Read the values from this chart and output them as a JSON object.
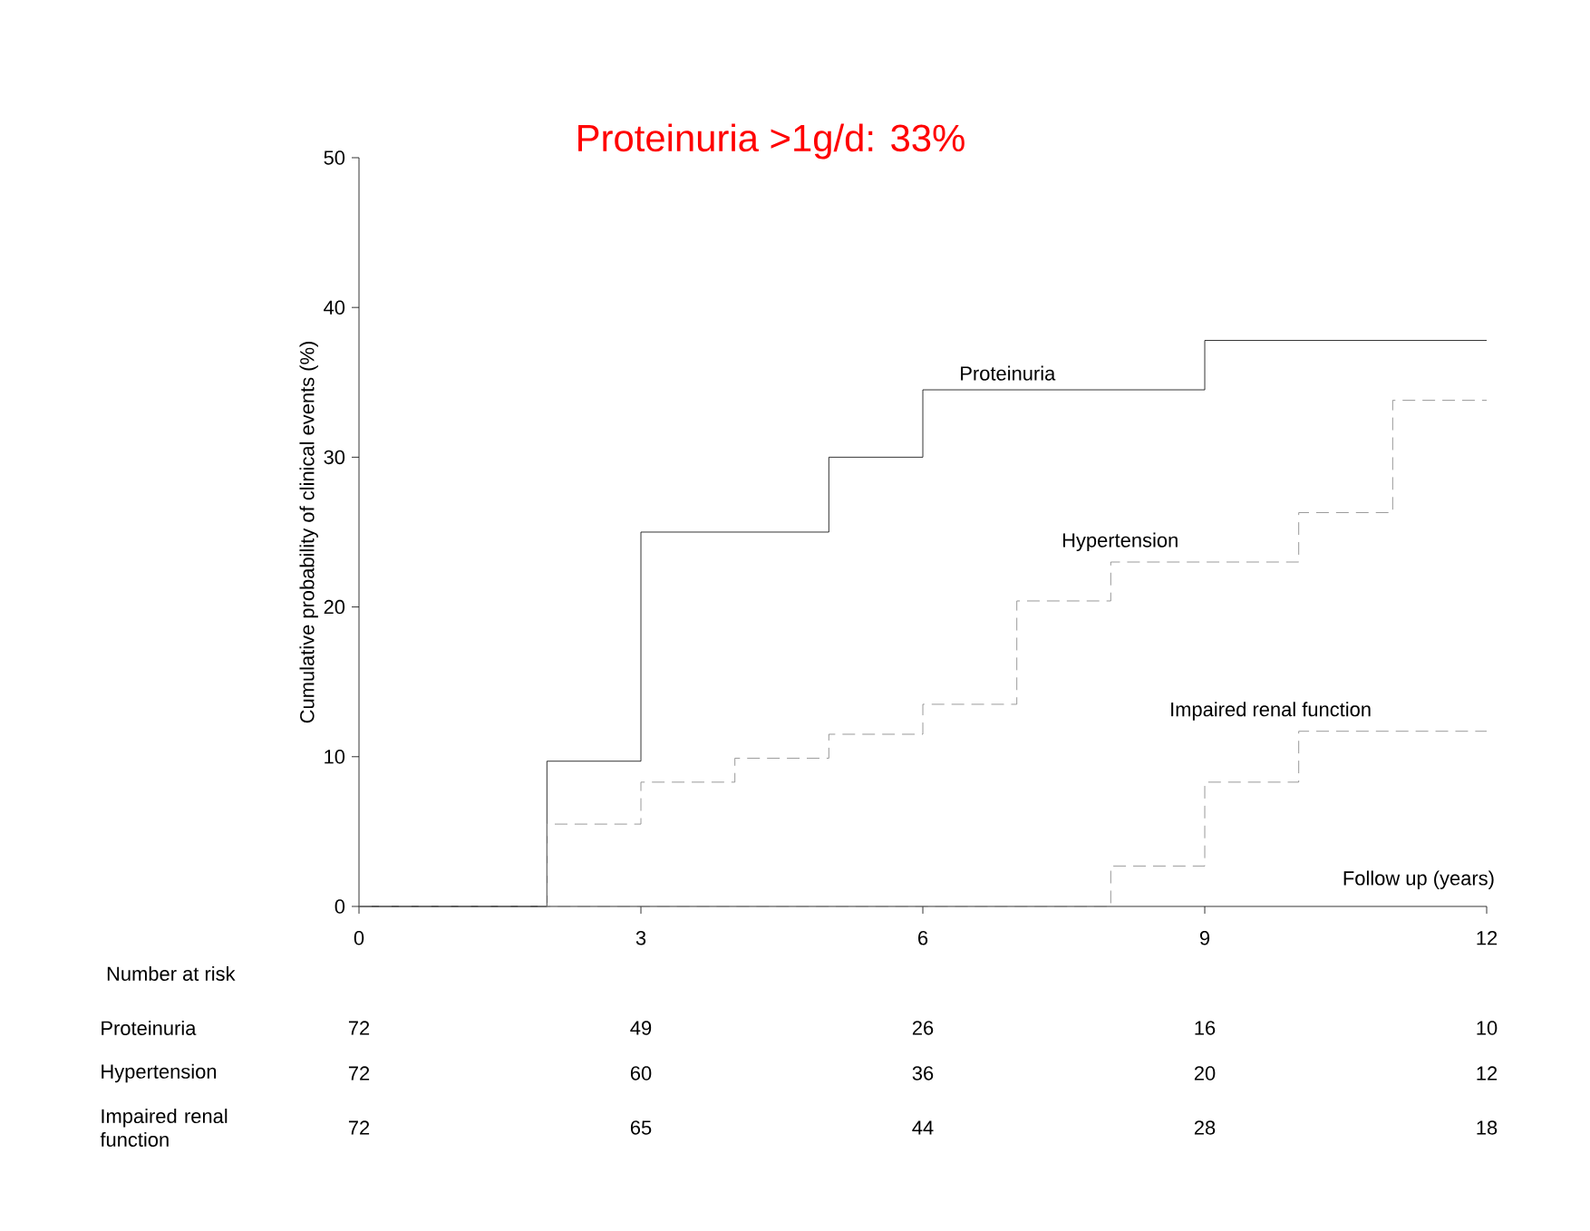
{
  "chart_data": {
    "type": "step",
    "title": "Proteinuria >1g/d: 33%",
    "xlabel": "Follow up (years)",
    "ylabel": "Cumulative probability of clinical events (%)",
    "xlim": [
      0,
      12
    ],
    "ylim": [
      0,
      50
    ],
    "xticks": [
      0,
      3,
      6,
      9,
      12
    ],
    "yticks": [
      0,
      10,
      20,
      30,
      40,
      50
    ],
    "grid": false,
    "marker": "none",
    "series": [
      {
        "name": "Proteinuria",
        "color": "#000000",
        "line_style": "solid",
        "x": [
          0,
          2,
          3,
          5,
          6,
          9,
          12
        ],
        "values": [
          0,
          9.7,
          25,
          30,
          34.5,
          37.8,
          37.8
        ]
      },
      {
        "name": "Hypertension",
        "color": "#808080",
        "line_style": "dashed",
        "x": [
          0,
          2,
          3,
          4,
          5,
          6,
          7,
          8,
          10,
          11,
          12
        ],
        "values": [
          0,
          5.5,
          8.3,
          9.9,
          11.5,
          13.5,
          20.4,
          23,
          26.3,
          33.8,
          33.8
        ]
      },
      {
        "name": "Impaired renal function",
        "color": "#808080",
        "line_style": "dashed",
        "x": [
          0,
          8,
          9,
          10,
          12
        ],
        "values": [
          0,
          2.7,
          8.3,
          11.7,
          11.7
        ]
      }
    ],
    "annotations": [
      "Number at risk",
      "Proteinuria",
      "Hypertension",
      "Impaired renal function",
      "72",
      "49",
      "26",
      "16",
      "10",
      "72",
      "60",
      "36",
      "20",
      "12",
      "72",
      "65",
      "44",
      "28",
      "18"
    ]
  }
}
